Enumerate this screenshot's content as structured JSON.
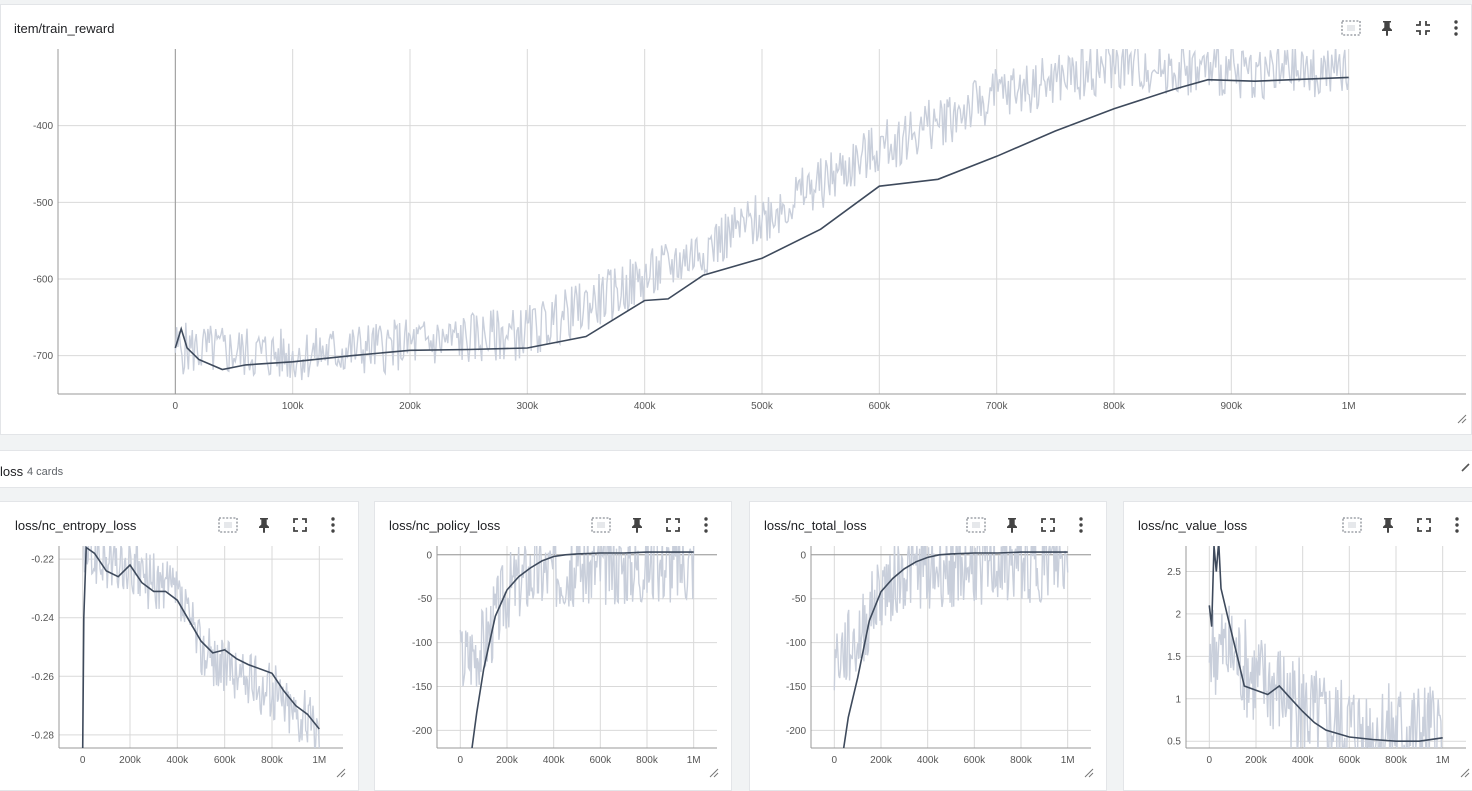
{
  "icons": {
    "fit": "fit-domain-icon",
    "pin": "pin-icon",
    "expand": "expand-icon",
    "collapse": "collapse-icon",
    "more": "more-vert-icon",
    "resize": "resize-handle-icon",
    "section_collapse": "chevron-up-icon"
  },
  "colors": {
    "smoothed": "#3e4a5c",
    "raw": "#c9cfdb",
    "grid": "#d9d9d9"
  },
  "main_card": {
    "title": "item/train_reward"
  },
  "section": {
    "title": "loss",
    "count": "4 cards"
  },
  "chart_data": [
    {
      "type": "line",
      "title": "item/train_reward",
      "xlim": [
        -100000,
        1100000
      ],
      "ylim": [
        -750,
        -300
      ],
      "x_ticks": [
        0,
        100000,
        200000,
        300000,
        400000,
        500000,
        600000,
        700000,
        800000,
        900000,
        1000000
      ],
      "x_tick_labels": [
        "0",
        "100k",
        "200k",
        "300k",
        "400k",
        "500k",
        "600k",
        "700k",
        "800k",
        "900k",
        "1M"
      ],
      "y_ticks": [
        -700,
        -600,
        -500,
        -400
      ],
      "y_tick_labels": [
        "-700",
        "-600",
        "-500",
        "-400"
      ],
      "smoothed": {
        "x": [
          0,
          5000,
          10000,
          20000,
          40000,
          60000,
          100000,
          150000,
          200000,
          250000,
          300000,
          350000,
          400000,
          420000,
          450000,
          500000,
          550000,
          600000,
          650000,
          700000,
          750000,
          800000,
          850000,
          880000,
          920000,
          1000000
        ],
        "y": [
          -690,
          -665,
          -690,
          -705,
          -718,
          -712,
          -708,
          -700,
          -693,
          -692,
          -690,
          -675,
          -628,
          -626,
          -595,
          -573,
          -535,
          -479,
          -470,
          -440,
          -407,
          -378,
          -353,
          -340,
          -342,
          -337
        ]
      },
      "raw": {
        "x_start": 0,
        "x_end": 1000000,
        "envelope": [
          [
            0,
            -690
          ],
          [
            100000,
            -700
          ],
          [
            200000,
            -685
          ],
          [
            300000,
            -670
          ],
          [
            400000,
            -600
          ],
          [
            500000,
            -520
          ],
          [
            600000,
            -430
          ],
          [
            700000,
            -360
          ],
          [
            800000,
            -320
          ],
          [
            900000,
            -330
          ],
          [
            1000000,
            -330
          ]
        ],
        "noise": 35
      },
      "grid": true
    },
    {
      "type": "line",
      "title": "loss/nc_entropy_loss",
      "xlim": [
        -100000,
        1100000
      ],
      "ylim": [
        -0.2845,
        -0.2155
      ],
      "x_ticks": [
        0,
        200000,
        400000,
        600000,
        800000,
        1000000
      ],
      "x_tick_labels": [
        "0",
        "200k",
        "400k",
        "600k",
        "800k",
        "1M"
      ],
      "y_ticks": [
        -0.28,
        -0.26,
        -0.24,
        -0.22
      ],
      "y_tick_labels": [
        "-0.28",
        "-0.26",
        "-0.24",
        "-0.22"
      ],
      "smoothed": {
        "x": [
          0,
          5000,
          15000,
          50000,
          100000,
          150000,
          200000,
          250000,
          300000,
          350000,
          400000,
          450000,
          500000,
          550000,
          600000,
          650000,
          700000,
          800000,
          850000,
          900000,
          950000,
          1000000
        ],
        "y": [
          -0.285,
          -0.24,
          -0.216,
          -0.218,
          -0.224,
          -0.226,
          -0.222,
          -0.228,
          -0.231,
          -0.231,
          -0.234,
          -0.241,
          -0.248,
          -0.252,
          -0.251,
          -0.254,
          -0.256,
          -0.259,
          -0.265,
          -0.27,
          -0.273,
          -0.278
        ]
      },
      "raw": {
        "x_start": 0,
        "x_end": 1000000,
        "envelope": [
          [
            0,
            -0.218
          ],
          [
            200000,
            -0.224
          ],
          [
            400000,
            -0.232
          ],
          [
            500000,
            -0.25
          ],
          [
            600000,
            -0.257
          ],
          [
            800000,
            -0.265
          ],
          [
            1000000,
            -0.278
          ]
        ],
        "noise": 0.01
      },
      "grid": true
    },
    {
      "type": "line",
      "title": "loss/nc_policy_loss",
      "xlim": [
        -100000,
        1100000
      ],
      "ylim": [
        -220,
        10
      ],
      "x_ticks": [
        0,
        200000,
        400000,
        600000,
        800000,
        1000000
      ],
      "x_tick_labels": [
        "0",
        "200k",
        "400k",
        "600k",
        "800k",
        "1M"
      ],
      "y_ticks": [
        -200,
        -150,
        -100,
        -50,
        0
      ],
      "y_tick_labels": [
        "-200",
        "-150",
        "-100",
        "-50",
        "0"
      ],
      "smoothed": {
        "x": [
          50000,
          70000,
          100000,
          150000,
          200000,
          250000,
          300000,
          350000,
          400000,
          450000,
          500000,
          600000,
          700000,
          800000,
          900000,
          1000000
        ],
        "y": [
          -220,
          -180,
          -130,
          -70,
          -40,
          -25,
          -15,
          -7,
          -2,
          0,
          1,
          2,
          2,
          3,
          3,
          3
        ]
      },
      "raw": {
        "x_start": 0,
        "x_end": 1000000,
        "envelope": [
          [
            0,
            -120
          ],
          [
            100000,
            -100
          ],
          [
            200000,
            -40
          ],
          [
            300000,
            -20
          ],
          [
            500000,
            -15
          ],
          [
            700000,
            -12
          ],
          [
            1000000,
            -10
          ]
        ],
        "noise": 45
      },
      "grid": true
    },
    {
      "type": "line",
      "title": "loss/nc_total_loss",
      "xlim": [
        -100000,
        1100000
      ],
      "ylim": [
        -220,
        10
      ],
      "x_ticks": [
        0,
        200000,
        400000,
        600000,
        800000,
        1000000
      ],
      "x_tick_labels": [
        "0",
        "200k",
        "400k",
        "600k",
        "800k",
        "1M"
      ],
      "y_ticks": [
        -200,
        -150,
        -100,
        -50,
        0
      ],
      "y_tick_labels": [
        "-200",
        "-150",
        "-100",
        "-50",
        "0"
      ],
      "smoothed": {
        "x": [
          40000,
          60000,
          100000,
          150000,
          200000,
          250000,
          300000,
          350000,
          400000,
          450000,
          500000,
          600000,
          700000,
          800000,
          900000,
          1000000
        ],
        "y": [
          -220,
          -185,
          -140,
          -75,
          -42,
          -27,
          -16,
          -8,
          -3,
          0,
          1,
          2,
          2,
          3,
          3,
          3
        ]
      },
      "raw": {
        "x_start": 0,
        "x_end": 1000000,
        "envelope": [
          [
            0,
            -120
          ],
          [
            100000,
            -100
          ],
          [
            200000,
            -40
          ],
          [
            300000,
            -20
          ],
          [
            500000,
            -15
          ],
          [
            700000,
            -12
          ],
          [
            1000000,
            -10
          ]
        ],
        "noise": 45
      },
      "grid": true
    },
    {
      "type": "line",
      "title": "loss/nc_value_loss",
      "xlim": [
        -100000,
        1100000
      ],
      "ylim": [
        0.42,
        2.8
      ],
      "x_ticks": [
        0,
        200000,
        400000,
        600000,
        800000,
        1000000
      ],
      "x_tick_labels": [
        "0",
        "200k",
        "400k",
        "600k",
        "800k",
        "1M"
      ],
      "y_ticks": [
        0.5,
        1,
        1.5,
        2,
        2.5
      ],
      "y_tick_labels": [
        "0.5",
        "1",
        "1.5",
        "2",
        "2.5"
      ],
      "smoothed": {
        "x": [
          0,
          10000,
          20000,
          30000,
          40000,
          50000,
          80000,
          120000,
          150000,
          200000,
          250000,
          300000,
          350000,
          400000,
          450000,
          500000,
          600000,
          700000,
          800000,
          900000,
          1000000
        ],
        "y": [
          2.1,
          1.85,
          2.8,
          2.5,
          2.85,
          2.3,
          1.95,
          1.5,
          1.15,
          1.1,
          1.05,
          1.15,
          1.0,
          0.85,
          0.72,
          0.63,
          0.55,
          0.52,
          0.5,
          0.5,
          0.54
        ]
      },
      "raw": {
        "x_start": 0,
        "x_end": 1000000,
        "envelope": [
          [
            0,
            1.6
          ],
          [
            100000,
            1.5
          ],
          [
            200000,
            1.2
          ],
          [
            300000,
            1.1
          ],
          [
            400000,
            0.85
          ],
          [
            500000,
            0.7
          ],
          [
            700000,
            0.6
          ],
          [
            1000000,
            0.6
          ]
        ],
        "noise": 0.6
      },
      "grid": true
    }
  ]
}
